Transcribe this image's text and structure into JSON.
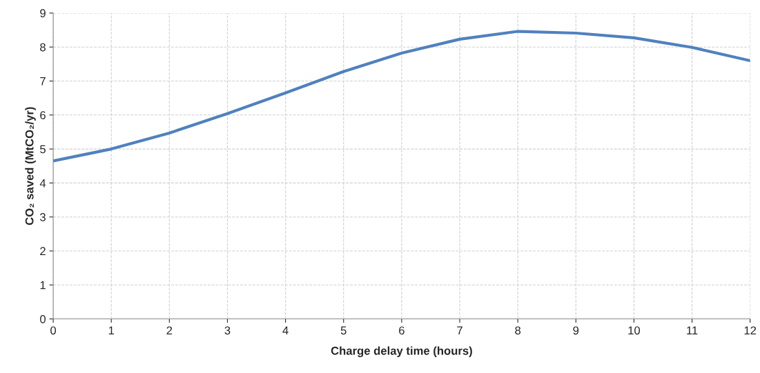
{
  "chart_data": {
    "type": "line",
    "xlabel": "Charge delay time (hours)",
    "ylabel": "CO₂ saved (MtCO₂/yr)",
    "x": [
      0,
      1,
      2,
      3,
      4,
      5,
      6,
      7,
      8,
      9,
      10,
      11,
      12
    ],
    "series": [
      {
        "color": "#4f81bd",
        "values": [
          4.65,
          5.0,
          5.47,
          6.04,
          6.65,
          7.28,
          7.82,
          8.23,
          8.46,
          8.41,
          8.27,
          7.99,
          7.6
        ]
      }
    ],
    "xlim": [
      0,
      12
    ],
    "xticks": [
      0,
      1,
      2,
      3,
      4,
      5,
      6,
      7,
      8,
      9,
      10,
      11,
      12
    ],
    "ylim": [
      0,
      9
    ],
    "yticks": [
      0,
      1,
      2,
      3,
      4,
      5,
      6,
      7,
      8,
      9
    ],
    "grid": true,
    "marker": "none",
    "line_style": "solid"
  }
}
